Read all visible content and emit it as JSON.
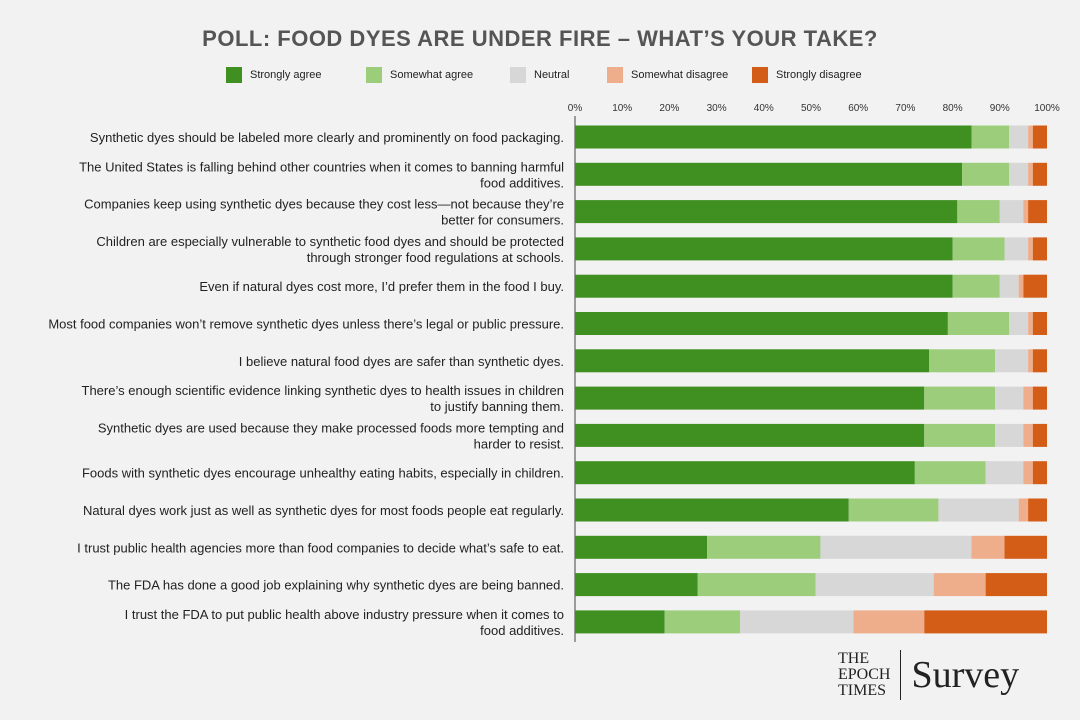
{
  "title": "POLL: FOOD DYES ARE UNDER FIRE – WHAT’S YOUR TAKE?",
  "branding": {
    "publisher": "THE\nEPOCH\nTIMES",
    "section": "Survey"
  },
  "chart_data": {
    "type": "bar",
    "orientation": "horizontal",
    "stacked": true,
    "title": "POLL: FOOD DYES ARE UNDER FIRE – WHAT’S YOUR TAKE?",
    "legend_position": "top",
    "xlim": [
      0,
      100
    ],
    "x_ticks": [
      "0%",
      "10%",
      "20%",
      "30%",
      "40%",
      "50%",
      "60%",
      "70%",
      "80%",
      "90%",
      "100%"
    ],
    "grid": false,
    "categories": [
      "Synthetic dyes should be labeled more clearly and prominently on food packaging.",
      "The United States is falling behind other countries when it comes to banning harmful food additives.",
      "Companies keep using synthetic dyes because they cost less—not because they’re better for consumers.",
      "Children are especially vulnerable to synthetic food dyes and should be protected through stronger food regulations at schools.",
      "Even if natural dyes cost more, I’d prefer them in the food I buy.",
      "Most food companies won’t remove synthetic dyes unless there’s legal or public pressure.",
      "I believe natural food dyes are safer than synthetic dyes.",
      "There’s enough scientific evidence linking synthetic dyes to health issues in children to justify banning them.",
      "Synthetic dyes are used because they make processed foods more tempting and harder to resist.",
      "Foods with synthetic dyes encourage unhealthy eating habits, especially in children.",
      "Natural dyes work just as well as synthetic dyes for most foods people eat regularly.",
      "I trust public health agencies more than food companies to decide what’s safe to eat.",
      "The FDA has done a good job explaining why synthetic dyes are being banned.",
      "I trust the FDA to put public health above industry pressure when it comes to food additives."
    ],
    "category_lines": [
      [
        "Synthetic dyes should be labeled more clearly and prominently on food packaging."
      ],
      [
        "The United States is falling behind other countries when it comes to banning harmful",
        "food additives."
      ],
      [
        "Companies keep using synthetic dyes because they cost less—not because they’re",
        "better for consumers."
      ],
      [
        "Children are especially vulnerable to synthetic food dyes and should be protected",
        "through stronger food regulations at schools."
      ],
      [
        "Even if natural dyes cost more, I’d prefer them in the food I buy."
      ],
      [
        "Most food companies won’t remove synthetic dyes unless there’s legal or public pressure."
      ],
      [
        "I believe natural food dyes are safer than synthetic dyes."
      ],
      [
        "There’s enough scientific evidence linking synthetic dyes to health issues in children",
        "to justify banning them."
      ],
      [
        "Synthetic dyes are used because they make processed foods more tempting and",
        "harder to resist."
      ],
      [
        "Foods with synthetic dyes encourage unhealthy eating habits, especially in children."
      ],
      [
        "Natural dyes work just as well as synthetic dyes for most foods people eat regularly."
      ],
      [
        "I trust public health agencies more than food companies to decide what’s safe to eat."
      ],
      [
        "The FDA has done a good job explaining why synthetic dyes are being banned."
      ],
      [
        "I trust the FDA to put public health above industry pressure when it comes to",
        "food additives."
      ]
    ],
    "series": [
      {
        "name": "Strongly agree",
        "color": "#3f8f21",
        "values": [
          84,
          82,
          81,
          80,
          80,
          79,
          75,
          74,
          74,
          72,
          58,
          28,
          26,
          19
        ]
      },
      {
        "name": "Somewhat agree",
        "color": "#9ccd7a",
        "values": [
          8,
          10,
          9,
          11,
          10,
          13,
          14,
          15,
          15,
          15,
          19,
          24,
          25,
          16
        ]
      },
      {
        "name": "Neutral",
        "color": "#d7d7d7",
        "values": [
          4,
          4,
          5,
          5,
          4,
          4,
          7,
          6,
          6,
          8,
          17,
          32,
          25,
          24
        ]
      },
      {
        "name": "Somewhat disagree",
        "color": "#eeae8c",
        "values": [
          1,
          1,
          1,
          1,
          1,
          1,
          1,
          2,
          2,
          2,
          2,
          7,
          11,
          15
        ]
      },
      {
        "name": "Strongly disagree",
        "color": "#d35c17",
        "values": [
          3,
          3,
          4,
          3,
          5,
          3,
          3,
          3,
          3,
          3,
          4,
          9,
          13,
          26
        ]
      }
    ]
  }
}
